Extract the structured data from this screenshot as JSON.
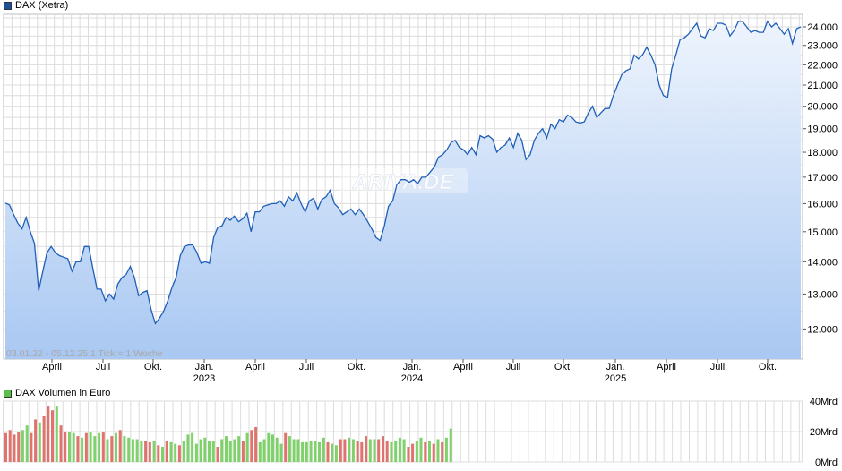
{
  "price_chart": {
    "legend_label": "DAX (Xetra)",
    "info_text": "03.01.22 - 05.12.25   1 Tick = 1 Woche",
    "watermark": "ARIVA.DE",
    "colors": {
      "line": "#1f5fb8",
      "fill_top": "#eef4fd",
      "fill_bottom": "#a9c8f2",
      "grid": "#dcdcdc",
      "legend": "#1d4f9a"
    }
  },
  "volume_chart": {
    "legend_label": "DAX Volumen in Euro",
    "colors": {
      "up": "#7fd16b",
      "down": "#e0736d",
      "legend": "#58c04b"
    }
  },
  "chart_data": [
    {
      "type": "line",
      "title": "DAX (Xetra)",
      "period": "03.01.22 - 05.12.25",
      "tick": "1 Tick = 1 Woche",
      "x_tick_labels": [
        "April",
        "Juli",
        "Okt.",
        "Jan.",
        "April",
        "Juli",
        "Okt.",
        "Jan.",
        "April",
        "Juli",
        "Okt.",
        "Jan.",
        "April",
        "Juli",
        "Okt."
      ],
      "x_year_labels": [
        "2023",
        "2024",
        "2025"
      ],
      "y_tick_labels": [
        "12.000",
        "13.000",
        "14.000",
        "15.000",
        "16.000",
        "17.000",
        "18.000",
        "19.000",
        "20.000",
        "21.000",
        "22.000",
        "23.000",
        "24.000"
      ],
      "y_scale": "log",
      "ylim": [
        11200,
        24700
      ],
      "grid": true,
      "values": [
        16020,
        15950,
        15600,
        15300,
        15100,
        15500,
        15000,
        14600,
        13100,
        13700,
        14300,
        14500,
        14300,
        14200,
        14150,
        14100,
        13700,
        14000,
        14000,
        14500,
        14500,
        13800,
        13150,
        13150,
        12800,
        13000,
        12850,
        13300,
        13500,
        13600,
        13850,
        13500,
        12950,
        13050,
        13100,
        12550,
        12150,
        12300,
        12500,
        12800,
        13200,
        13500,
        14200,
        14500,
        14550,
        14550,
        14300,
        13950,
        14000,
        13950,
        14800,
        15150,
        15200,
        15500,
        15400,
        15550,
        15350,
        15450,
        15650,
        15000,
        15700,
        15700,
        15900,
        15950,
        16000,
        16000,
        16100,
        15900,
        16250,
        16100,
        16400,
        16000,
        15700,
        16100,
        16200,
        15800,
        16150,
        16250,
        16500,
        16000,
        15850,
        15600,
        15700,
        15800,
        15600,
        15800,
        15600,
        15350,
        15100,
        14800,
        14700,
        15200,
        15900,
        16100,
        16700,
        16900,
        16900,
        16800,
        16900,
        16750,
        17000,
        17000,
        17200,
        17400,
        17800,
        17900,
        18100,
        18400,
        18500,
        18200,
        18100,
        17900,
        18200,
        17900,
        18700,
        18600,
        18700,
        18550,
        18000,
        18200,
        18300,
        18600,
        18200,
        18800,
        18500,
        17700,
        17900,
        18500,
        18800,
        19000,
        18600,
        19200,
        19000,
        19400,
        19300,
        19600,
        19500,
        19300,
        19250,
        19300,
        19700,
        20000,
        19500,
        19700,
        19900,
        19900,
        20500,
        21000,
        21500,
        21700,
        21800,
        22500,
        22300,
        22500,
        22900,
        22500,
        22000,
        21000,
        20500,
        20400,
        21800,
        22500,
        23300,
        23400,
        23600,
        23900,
        24200,
        23500,
        23400,
        23900,
        23800,
        24200,
        24200,
        24100,
        23500,
        23800,
        24300,
        24300,
        24000,
        23700,
        23800,
        23700,
        23700,
        24300,
        24000,
        24200,
        23900,
        23600,
        23900,
        23100,
        23900,
        24000
      ]
    },
    {
      "type": "bar",
      "title": "DAX Volumen in Euro",
      "y_tick_labels": [
        "0Mrd",
        "20Mrd",
        "40Mrd"
      ],
      "ylim": [
        0,
        40
      ],
      "note": "volume bars shown only for the first ~2 years; green = up week, red = down week",
      "values": [
        19,
        21,
        18,
        20,
        21,
        24,
        19,
        28,
        26,
        30,
        37,
        34,
        37,
        24,
        20,
        20,
        19,
        17,
        16,
        19,
        20,
        17,
        19,
        20,
        15,
        17,
        19,
        21,
        17,
        16,
        15,
        15,
        14,
        14,
        13,
        14,
        11,
        10,
        14,
        13,
        12,
        11,
        14,
        18,
        19,
        12,
        15,
        16,
        14,
        14,
        10,
        15,
        17,
        14,
        15,
        17,
        14,
        19,
        21,
        23,
        13,
        15,
        19,
        18,
        16,
        12,
        19,
        17,
        15,
        15,
        13,
        13,
        14,
        14,
        13,
        16,
        13,
        12,
        11,
        15,
        15,
        16,
        15,
        14,
        13,
        17,
        15,
        15,
        15,
        17,
        14,
        13,
        14,
        16,
        15,
        10,
        12,
        14,
        16,
        13,
        14,
        12,
        15,
        13,
        16,
        22
      ],
      "directions": [
        "down",
        "down",
        "down",
        "down",
        "green",
        "green",
        "down",
        "down",
        "green",
        "down",
        "down",
        "down",
        "green",
        "down",
        "down",
        "green",
        "green",
        "down",
        "green",
        "down",
        "green",
        "green",
        "green",
        "down",
        "green",
        "down",
        "green",
        "down",
        "green",
        "green",
        "green",
        "green",
        "green",
        "down",
        "down",
        "green",
        "down",
        "green",
        "down",
        "green",
        "green",
        "down",
        "green",
        "green",
        "green",
        "green",
        "green",
        "green",
        "green",
        "green",
        "down",
        "green",
        "green",
        "green",
        "green",
        "green",
        "down",
        "green",
        "down",
        "down",
        "green",
        "green",
        "green",
        "green",
        "green",
        "green",
        "down",
        "green",
        "green",
        "green",
        "green",
        "green",
        "green",
        "green",
        "green",
        "green",
        "down",
        "green",
        "green",
        "down",
        "down",
        "green",
        "green",
        "down",
        "down",
        "down",
        "green",
        "green",
        "down",
        "down",
        "down",
        "green",
        "green",
        "green",
        "green",
        "down",
        "down",
        "green",
        "green",
        "down",
        "green",
        "down",
        "green",
        "down",
        "green",
        "green"
      ]
    }
  ]
}
